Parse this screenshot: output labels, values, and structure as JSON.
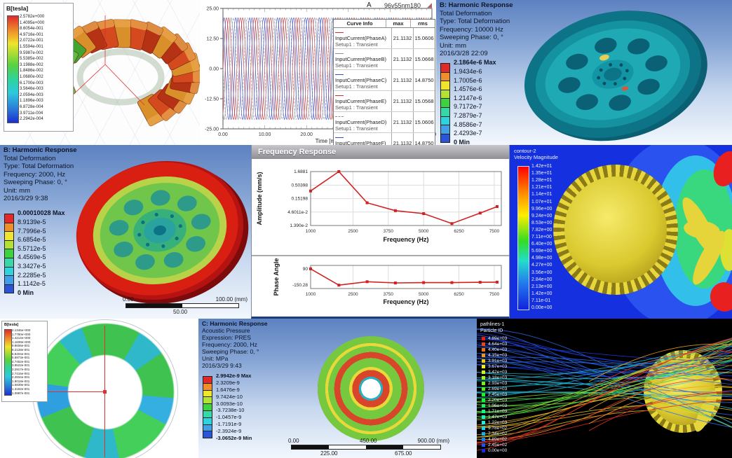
{
  "colors": {
    "accent_red": "#d42020",
    "legend_swatches": [
      "#e02a2a",
      "#ef8f2b",
      "#efe52b",
      "#b4e234",
      "#3fd23f",
      "#37d8a8",
      "#2ed3dd",
      "#3fa0e8",
      "#2b55d8"
    ]
  },
  "panels": {
    "maxwell_stator": {
      "legend_title": "B[tesla]",
      "legend_values": [
        "2.5782e+000",
        "1.4095e+000",
        "8.6054e-001",
        "4.9716e-001",
        "2.0722e-001",
        "1.5594e-001",
        "9.5987e-002",
        "5.5385e-002",
        "3.1988e-002",
        "1.8486e-002",
        "1.0680e-002",
        "6.1700e-003",
        "3.5646e-003",
        "2.0594e-003",
        "1.1896e-003",
        "6.8728e-004",
        "3.9711e-004",
        "2.2942e-004"
      ]
    },
    "current_plot": {
      "title": "A",
      "corner_label": "96v55nm180",
      "corner_icon": "◢",
      "xlabel": "Time [ms]",
      "table": {
        "headers": [
          "Curve Info",
          "max",
          "rms"
        ],
        "rows": [
          {
            "label": "InputCurrent(PhaseA)",
            "sub": "Setup1 : Transient",
            "max": "21.1132",
            "rms": "15.0606",
            "line": "#c23333",
            "dash": false
          },
          {
            "label": "InputCurrent(PhaseB)",
            "sub": "Setup1 : Transient",
            "max": "21.1132",
            "rms": "15.0668",
            "line": "#8f8f9f",
            "dash": false
          },
          {
            "label": "InputCurrent(PhaseC)",
            "sub": "Setup1 : Transient",
            "max": "21.1132",
            "rms": "14.8750",
            "line": "#3a4ec2",
            "dash": false
          },
          {
            "label": "InputCurrent(PhaseE)",
            "sub": "Setup1 : Transient",
            "max": "21.1132",
            "rms": "15.0568",
            "line": "#c23333",
            "dash": false
          },
          {
            "label": "InputCurrent(PhaseD)",
            "sub": "Setup1 : Transient",
            "max": "21.1132",
            "rms": "15.0606",
            "line": "#8f8f9f",
            "dash": true
          },
          {
            "label": "InputCurrent(PhaseF)",
            "sub": "Setup1 : Transient",
            "max": "21.1132",
            "rms": "14.8750",
            "line": "#3a4ec2",
            "dash": false
          }
        ]
      }
    },
    "harmonic_10000": {
      "header_lines": [
        "B: Harmonic Response",
        "Total Deformation",
        "Type: Total Deformation",
        "Frequency: 10000 Hz",
        "Sweeping Phase: 0, °",
        "Unit: mm",
        "2016/3/28 22:09"
      ],
      "legend_values": [
        "2.1864e-6 Max",
        "1.9434e-6",
        "1.7005e-6",
        "1.4576e-6",
        "1.2147e-6",
        "9.7172e-7",
        "7.2879e-7",
        "4.8586e-7",
        "2.4293e-7",
        "0 Min"
      ]
    },
    "harmonic_2000": {
      "header_lines": [
        "B: Harmonic Response",
        "Total Deformation",
        "Type: Total Deformation",
        "Frequency: 2000, Hz",
        "Sweeping Phase: 0, °",
        "Unit: mm",
        "2016/3/29 9:38"
      ],
      "legend_values": [
        "0.00010028 Max",
        "8.9139e-5",
        "7.7996e-5",
        "6.6854e-5",
        "5.5712e-5",
        "4.4569e-5",
        "3.3427e-5",
        "2.2285e-5",
        "1.1142e-5",
        "0 Min"
      ],
      "scale_bar": {
        "left": "0.00",
        "mid": "50.00",
        "right": "100.00 (mm)"
      }
    },
    "frequency_response": {
      "window_title": "Frequency Response"
    },
    "cfd_velocity": {
      "legend_title_lines": [
        "contour-2",
        "Velocity Magnitude"
      ],
      "legend_values": [
        "1.42e+01",
        "1.35e+01",
        "1.28e+01",
        "1.21e+01",
        "1.14e+01",
        "1.07e+01",
        "9.96e+00",
        "9.24e+00",
        "8.53e+00",
        "7.82e+00",
        "7.11e+00",
        "6.40e+00",
        "5.69e+00",
        "4.98e+00",
        "4.27e+00",
        "3.56e+00",
        "2.84e+00",
        "2.13e+00",
        "1.42e+00",
        "7.11e-01",
        "0.00e+00"
      ]
    },
    "maxwell_rotor": {
      "legend_title": "B[tesla]",
      "legend_values": [
        "2.1346e+000",
        "1.7780e+000",
        "1.4214e+000",
        "1.1839e+000",
        "9.8606e-001",
        "8.2128e-001",
        "6.8404e-001",
        "5.6973e-001",
        "4.7452e-001",
        "3.9522e-001",
        "3.2917e-001",
        "2.7416e-001",
        "2.2834e-001",
        "1.9018e-001",
        "1.5839e-001",
        "1.3192e-001",
        "1.0987e-001"
      ]
    },
    "acoustic": {
      "header_lines": [
        "C: Harmonic Response",
        "Acoustic Pressure",
        "Expression: PRES",
        "Frequency: 2000, Hz",
        "Sweeping Phase: 0, °",
        "Unit: MPa",
        "2016/3/29 9:43"
      ],
      "legend_values": [
        "2.9942e-9 Max",
        "2.3209e-9",
        "1.6476e-9",
        "9.7424e-10",
        "3.0093e-10",
        "-3.7238e-10",
        "-1.0457e-9",
        "-1.7191e-9",
        "-2.3924e-9",
        "-3.0652e-9 Min"
      ],
      "scale_bar": {
        "v0": "0.00",
        "v1": "225.00",
        "v2": "450.00",
        "v3": "675.00",
        "v4": "900.00 (mm)"
      }
    },
    "streamlines": {
      "legend_title_lines": [
        "pathlines-1",
        "Particle ID"
      ],
      "legend_values": [
        "4.89e+03",
        "4.64e+03",
        "4.40e+03",
        "4.15e+03",
        "3.91e+03",
        "3.67e+03",
        "3.42e+03",
        "3.18e+03",
        "2.93e+03",
        "2.69e+03",
        "2.45e+03",
        "2.20e+03",
        "1.96e+03",
        "1.71e+03",
        "1.47e+03",
        "1.22e+03",
        "9.78e+02",
        "7.34e+02",
        "4.89e+02",
        "2.45e+02",
        "0.00e+00"
      ]
    }
  },
  "chart_data": [
    {
      "id": "input-currents",
      "type": "line",
      "title": "A",
      "xlabel": "Time [ms]",
      "xlim": [
        0,
        50
      ],
      "ylim": [
        -25,
        25
      ],
      "xticks": [
        "0.00",
        "10.00",
        "20.00",
        "30.00",
        "40.00",
        "50.00"
      ],
      "yticks": [
        "25.00",
        "12.50",
        "0.00",
        "-12.50",
        "-25.00"
      ],
      "amplitude": 21.1132,
      "period_ms": 3.3333,
      "series": [
        {
          "name": "InputCurrent(PhaseA)",
          "color": "#c23333",
          "phase_deg": 0,
          "dash": false
        },
        {
          "name": "InputCurrent(PhaseB)",
          "color": "#8f8f9f",
          "phase_deg": -120,
          "dash": false
        },
        {
          "name": "InputCurrent(PhaseC)",
          "color": "#3a4ec2",
          "phase_deg": -240,
          "dash": false
        },
        {
          "name": "InputCurrent(PhaseE)",
          "color": "#c23333",
          "phase_deg": -60,
          "dash": false
        },
        {
          "name": "InputCurrent(PhaseD)",
          "color": "#8f8f9f",
          "phase_deg": -180,
          "dash": true
        },
        {
          "name": "InputCurrent(PhaseF)",
          "color": "#3a4ec2",
          "phase_deg": -300,
          "dash": false
        }
      ]
    },
    {
      "id": "amplitude-response",
      "type": "line",
      "ylog": true,
      "ylabel": "Amplitude (mm/s)",
      "xlabel": "Frequency (Hz)",
      "x": [
        1000,
        2000,
        3000,
        4000,
        5000,
        6000,
        7000,
        7600
      ],
      "y": [
        0.3,
        1.6881,
        0.105,
        0.052,
        0.04,
        0.0165,
        0.042,
        0.075
      ],
      "yticks": [
        {
          "label": "1.6881",
          "value": 1.6881
        },
        {
          "label": "0.50398",
          "value": 0.50398
        },
        {
          "label": "0.15198",
          "value": 0.15198
        },
        {
          "label": "4.6011e-2",
          "value": 0.046011
        },
        {
          "label": "1.390e-2",
          "value": 0.0139
        }
      ],
      "xticks": [
        "1000",
        "2500",
        "3750",
        "5000",
        "6250",
        "7500"
      ],
      "xtick_vals": [
        1000,
        2500,
        3750,
        5000,
        6250,
        7500
      ],
      "color": "#d42020"
    },
    {
      "id": "phase-angle",
      "type": "line",
      "ylabel": "Phase Angle",
      "xlabel": "Frequency (Hz)",
      "ylim": [
        -200,
        140
      ],
      "x": [
        1000,
        2000,
        3000,
        4000,
        5000,
        6000,
        7000,
        7600
      ],
      "y": [
        90,
        -150.28,
        -100,
        -118,
        -113,
        -113,
        -108,
        -106
      ],
      "yticks": [
        {
          "label": "90",
          "value": 90
        },
        {
          "label": "-150.28",
          "value": -150.28
        }
      ],
      "xticks": [
        "1000",
        "2500",
        "3750",
        "5000",
        "6250",
        "7500"
      ],
      "xtick_vals": [
        1000,
        2500,
        3750,
        5000,
        6250,
        7500
      ],
      "color": "#d42020"
    }
  ]
}
